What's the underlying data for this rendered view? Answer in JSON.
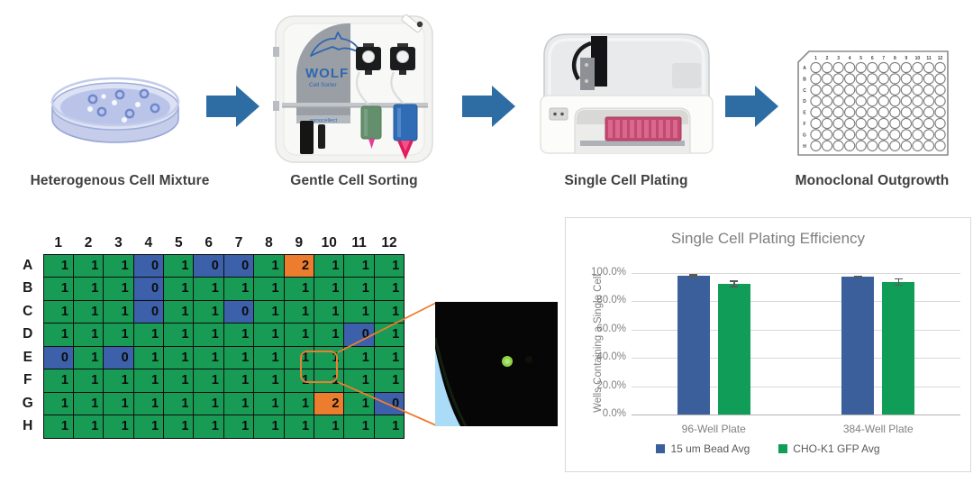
{
  "workflow": {
    "arrow_color": "#2E6DA4",
    "steps": [
      {
        "icon": "petri-dish",
        "label": "Heterogenous Cell Mixture"
      },
      {
        "icon": "wolf-cell-sorter",
        "label": "Gentle Cell Sorting",
        "device_brand": "WOLF",
        "device_model": "Cell Sorter",
        "device_maker": "nanocellect"
      },
      {
        "icon": "single-cell-plater",
        "label": "Single Cell Plating"
      },
      {
        "icon": "96-well-plate",
        "label": "Monoclonal Outgrowth"
      }
    ]
  },
  "plate_map": {
    "column_labels": [
      "1",
      "2",
      "3",
      "4",
      "5",
      "6",
      "7",
      "8",
      "9",
      "10",
      "11",
      "12"
    ],
    "row_labels": [
      "A",
      "B",
      "C",
      "D",
      "E",
      "F",
      "G",
      "H"
    ],
    "rows": [
      [
        1,
        1,
        1,
        0,
        1,
        0,
        0,
        1,
        2,
        1,
        1,
        1
      ],
      [
        1,
        1,
        1,
        0,
        1,
        1,
        1,
        1,
        1,
        1,
        1,
        1
      ],
      [
        1,
        1,
        1,
        0,
        1,
        1,
        0,
        1,
        1,
        1,
        1,
        1
      ],
      [
        1,
        1,
        1,
        1,
        1,
        1,
        1,
        1,
        1,
        1,
        0,
        1
      ],
      [
        0,
        1,
        0,
        1,
        1,
        1,
        1,
        1,
        1,
        1,
        1,
        1
      ],
      [
        1,
        1,
        1,
        1,
        1,
        1,
        1,
        1,
        1,
        1,
        1,
        1
      ],
      [
        1,
        1,
        1,
        1,
        1,
        1,
        1,
        1,
        1,
        2,
        1,
        0
      ],
      [
        1,
        1,
        1,
        1,
        1,
        1,
        1,
        1,
        1,
        1,
        1,
        1
      ]
    ],
    "value_colors": {
      "0": "#3C61AA",
      "1": "#189B55",
      "2": "#EC7D2F"
    },
    "highlight_cell": "E9",
    "highlight_color": "#ED7D31"
  },
  "micrograph": {
    "background_color": "#060606",
    "cell_color": "#8FD347",
    "well_edge_color": "#AADCF7"
  },
  "chart_data": {
    "type": "bar",
    "title": "Single Cell Plating Efficiency",
    "xlabel": "",
    "ylabel": "Wells Containing a Single Cell",
    "categories": [
      "96-Well Plate",
      "384-Well Plate"
    ],
    "series": [
      {
        "name": "15 um Bead Avg",
        "color": "#3A5F9B",
        "values": [
          98.1,
          97.6
        ],
        "error": [
          1.0,
          0.7
        ]
      },
      {
        "name": "CHO-K1 GFP Avg",
        "color": "#0F9D58",
        "values": [
          92.3,
          93.7
        ],
        "error": [
          2.4,
          2.7
        ]
      }
    ],
    "ylim": [
      0,
      100
    ],
    "yticks": [
      "0.0%",
      "20.0%",
      "40.0%",
      "60.0%",
      "80.0%",
      "100.0%"
    ],
    "grid": true,
    "legend_position": "bottom",
    "error_bar_color": "#595959"
  }
}
